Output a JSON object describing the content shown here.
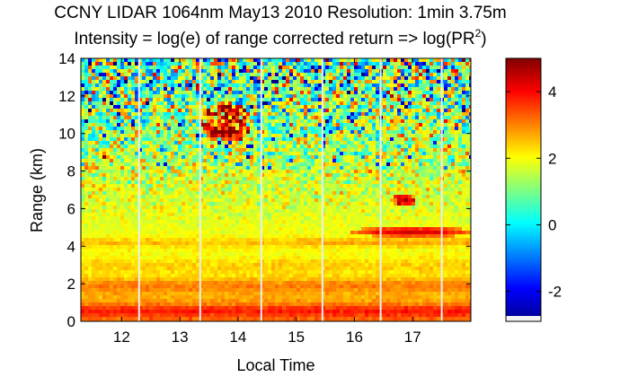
{
  "chart_data": {
    "type": "heatmap",
    "title": "CCNY LIDAR 1064nm May13 2010 Resolution: 1min 3.75m",
    "subtitle_prefix": "Intensity = log(e) of range corrected return => log(PR",
    "subtitle_sup": "2",
    "subtitle_suffix": ")",
    "xlabel": "Local Time",
    "ylabel": "Range (km)",
    "xlim": [
      11.3,
      18.0
    ],
    "ylim": [
      0,
      14
    ],
    "xticks": [
      12,
      13,
      14,
      15,
      16,
      17
    ],
    "xtick_labels": [
      "12",
      "13",
      "14",
      "15",
      "16",
      "17"
    ],
    "yticks": [
      0,
      2,
      4,
      6,
      8,
      10,
      12,
      14
    ],
    "ytick_labels": [
      "0",
      "2",
      "4",
      "6",
      "8",
      "10",
      "12",
      "14"
    ],
    "colorbar": {
      "colormap": "jet",
      "clim": [
        -2.9,
        5.0
      ],
      "ticks": [
        -2,
        0,
        2,
        4
      ],
      "tick_labels": [
        "-2",
        "0",
        "2",
        "4"
      ]
    },
    "data_gaps_local_time": [
      12.3,
      13.35,
      14.4,
      15.45,
      16.45,
      17.5
    ],
    "features": [
      {
        "name": "boundary layer",
        "time": [
          11.3,
          18.0
        ],
        "range_km": [
          0.3,
          1.2
        ],
        "intensity": 3.2
      },
      {
        "name": "aerosol layer",
        "time": [
          11.3,
          18.0
        ],
        "range_km": [
          3.8,
          4.4
        ],
        "intensity": 2.8
      },
      {
        "name": "cloud",
        "time": [
          13.4,
          14.2
        ],
        "range_km": [
          9.6,
          11.6
        ],
        "intensity": 4.8
      },
      {
        "name": "cloud",
        "time": [
          11.65,
          11.75
        ],
        "range_km": [
          8.6,
          9.0
        ],
        "intensity": 4.2
      },
      {
        "name": "cloud",
        "time": [
          16.65,
          17.05
        ],
        "range_km": [
          6.1,
          6.8
        ],
        "intensity": 4.5
      },
      {
        "name": "cloud",
        "time": [
          16.0,
          18.0
        ],
        "range_km": [
          4.5,
          5.0
        ],
        "intensity": 4.3
      }
    ]
  }
}
